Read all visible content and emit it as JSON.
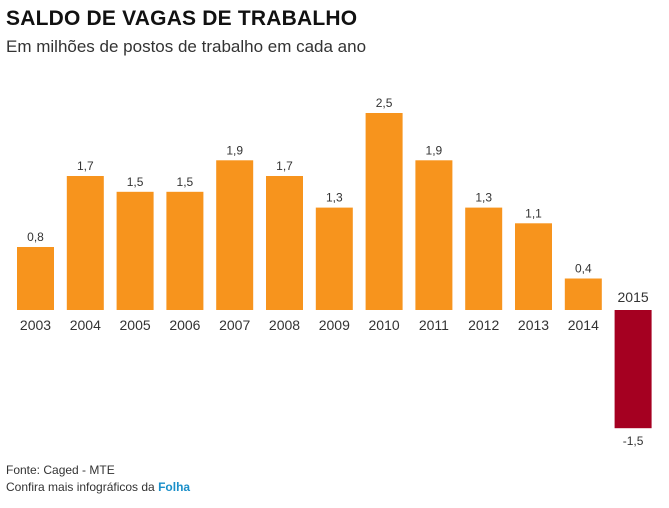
{
  "header": {
    "title": "SALDO DE VAGAS DE TRABALHO",
    "subtitle": "Em milhões de postos de trabalho em cada ano"
  },
  "footer": {
    "source": "Fonte: Caged - MTE",
    "more_prefix": "Confira mais infográficos da",
    "more_link": "Folha"
  },
  "colors": {
    "positive": "#f7941d",
    "negative": "#a50021",
    "link": "#1a8fc9"
  },
  "chart_data": {
    "type": "bar",
    "categories": [
      "2003",
      "2004",
      "2005",
      "2006",
      "2007",
      "2008",
      "2009",
      "2010",
      "2011",
      "2012",
      "2013",
      "2014",
      "2015"
    ],
    "values": [
      0.8,
      1.7,
      1.5,
      1.5,
      1.9,
      1.7,
      1.3,
      2.5,
      1.9,
      1.3,
      1.1,
      0.4,
      -1.5
    ],
    "value_labels": [
      "0,8",
      "1,7",
      "1,5",
      "1,5",
      "1,9",
      "1,7",
      "1,3",
      "2,5",
      "1,9",
      "1,3",
      "1,1",
      "0,4",
      "-1,5"
    ],
    "title": "SALDO DE VAGAS DE TRABALHO",
    "subtitle": "Em milhões de postos de trabalho em cada ano",
    "xlabel": "",
    "ylabel": "",
    "ylim": [
      -1.5,
      2.5
    ],
    "grid": false,
    "legend": "none"
  }
}
